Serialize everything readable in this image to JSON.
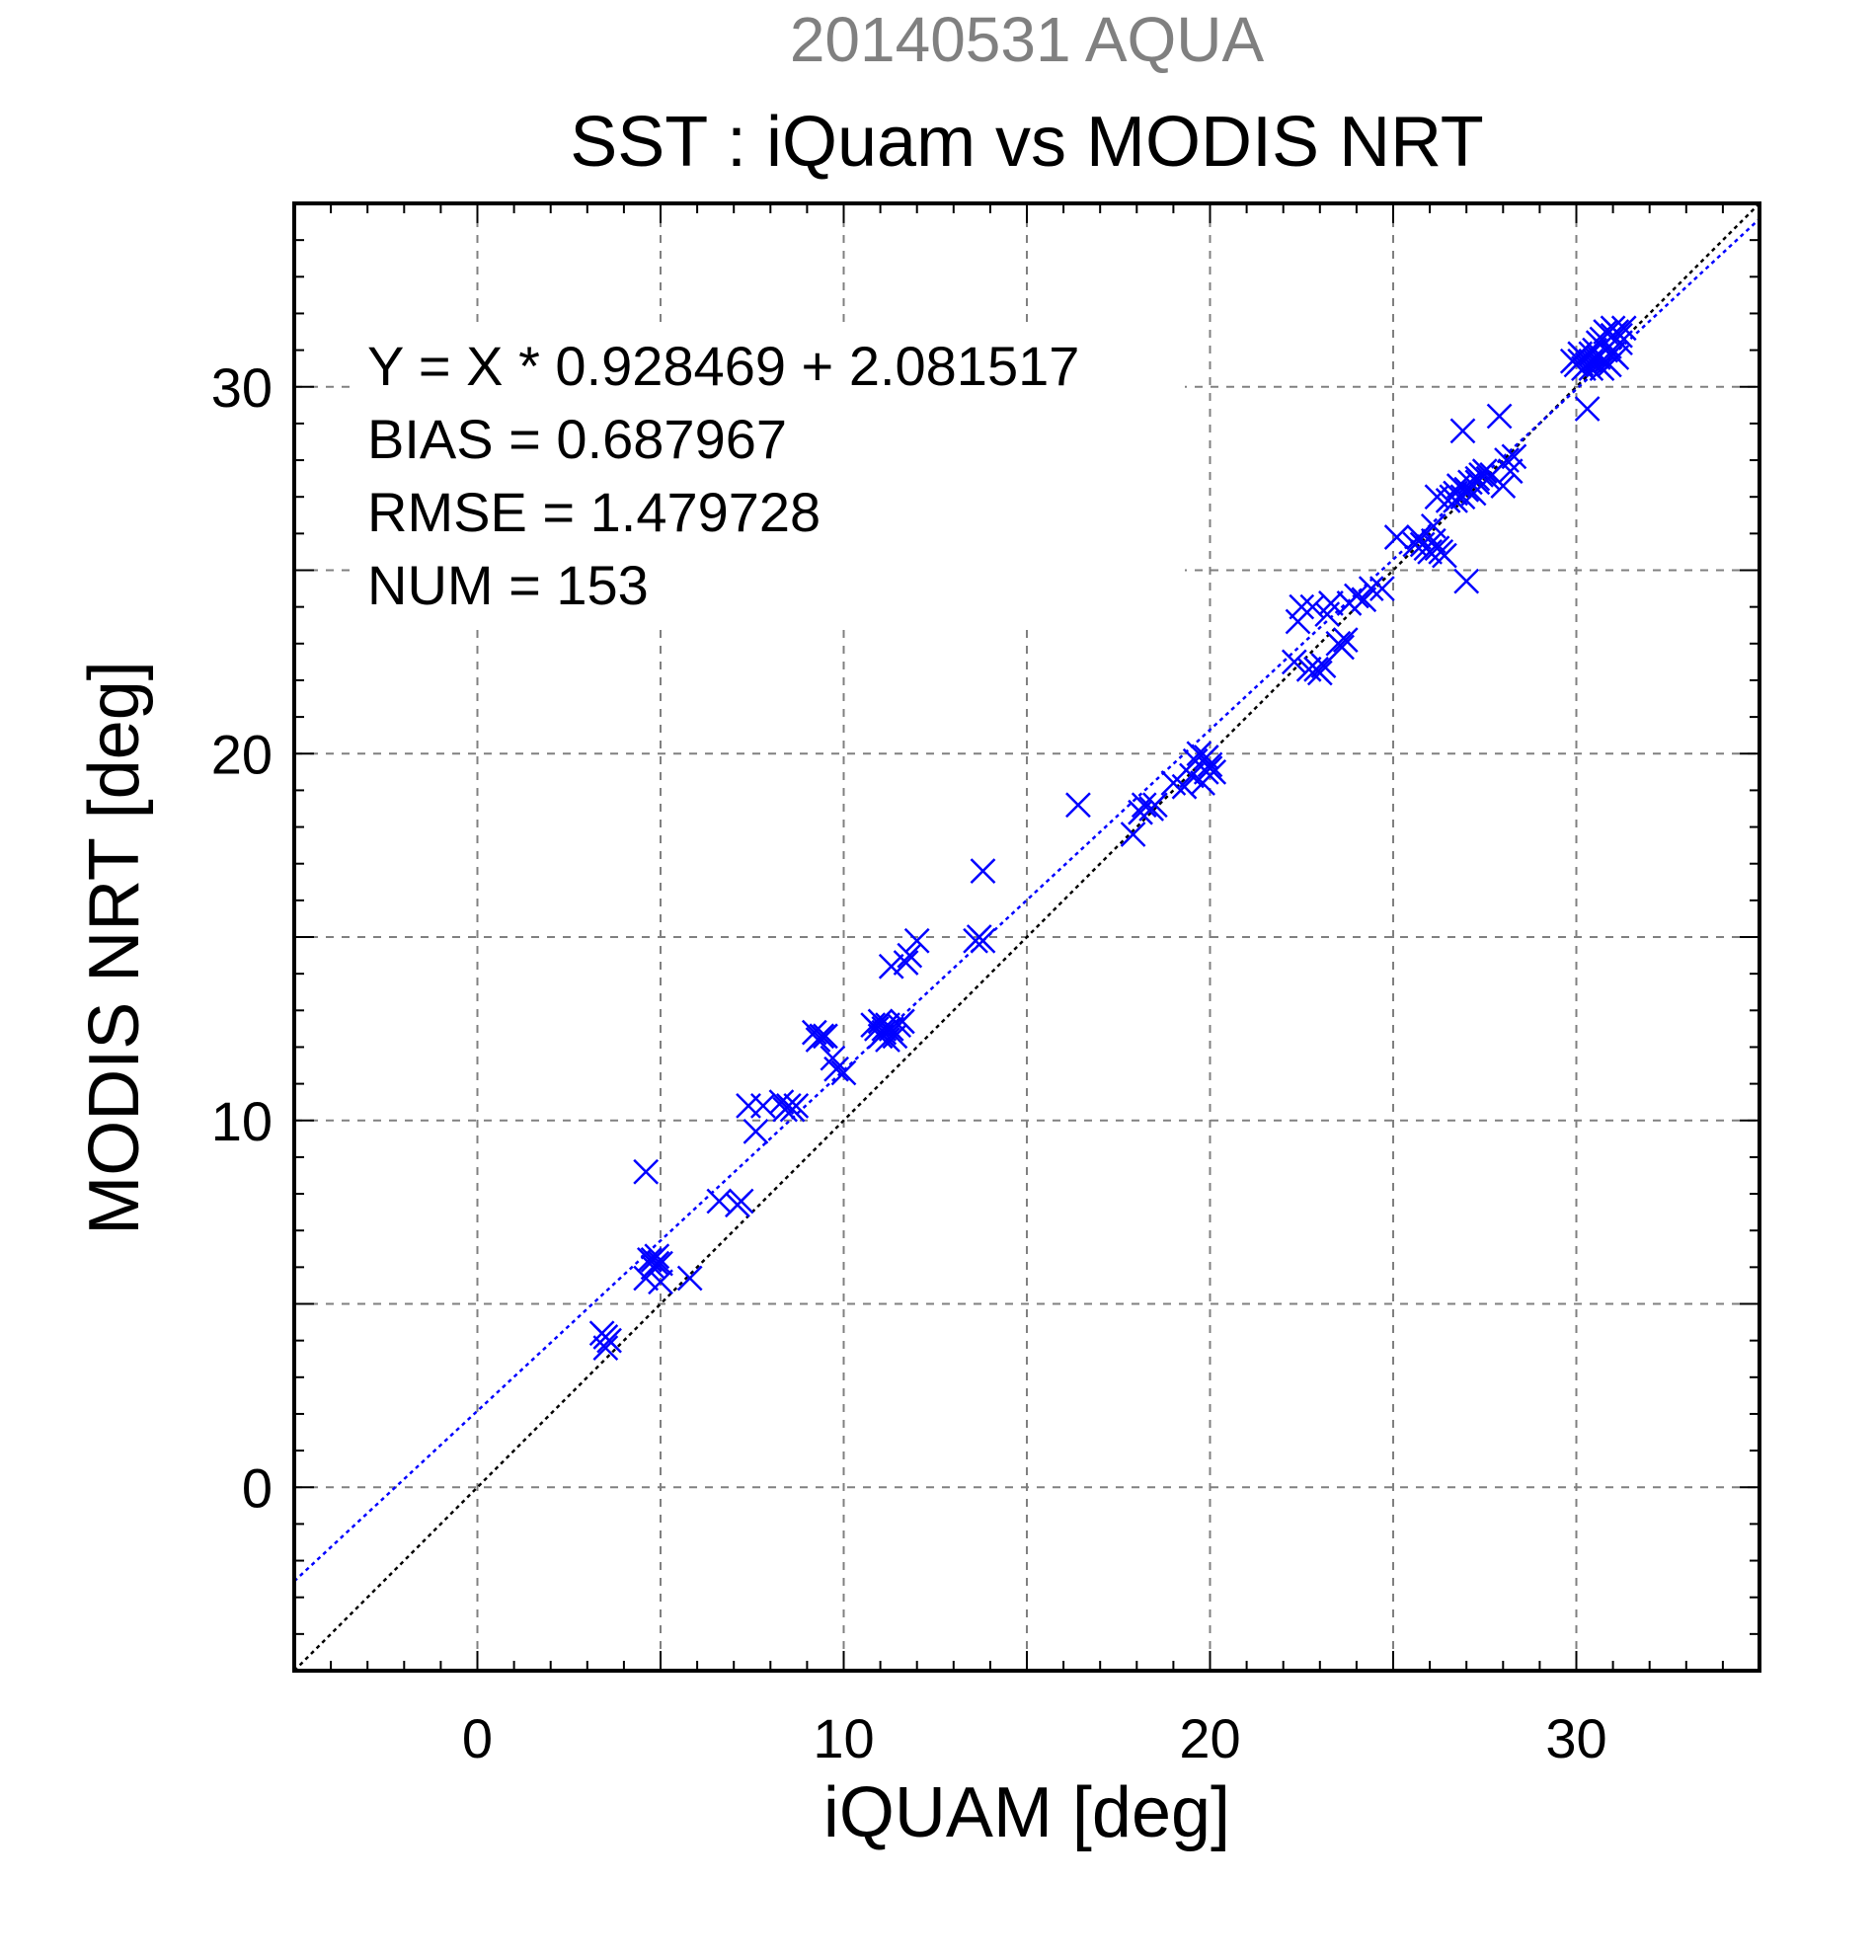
{
  "chart_data": {
    "type": "scatter",
    "title": "SST : iQuam vs MODIS NRT",
    "subtitle": "20140531 AQUA",
    "xlabel": "iQUAM [deg]",
    "ylabel": "MODIS NRT [deg]",
    "xlim": [
      -5,
      35
    ],
    "ylim": [
      -5,
      35
    ],
    "xticks": [
      0,
      10,
      20,
      30
    ],
    "yticks": [
      0,
      10,
      20,
      30
    ],
    "grid": true,
    "annotations": [
      "Y = X * 0.928469 + 2.081517",
      "BIAS = 0.687967",
      "RMSE = 1.479728",
      "NUM = 153"
    ],
    "fit_line": {
      "slope": 0.928469,
      "intercept": 2.081517
    },
    "colors": {
      "points": "#0000ff",
      "fit": "#0000ff",
      "identity": "#000000",
      "subtitle": "#808080",
      "grid": "#808080"
    },
    "series": [
      {
        "marker": "x",
        "points": [
          [
            3.4,
            4.2
          ],
          [
            3.5,
            4.1
          ],
          [
            3.5,
            3.8
          ],
          [
            3.6,
            4.0
          ],
          [
            4.6,
            8.6
          ],
          [
            4.6,
            5.7
          ],
          [
            4.7,
            6.2
          ],
          [
            4.8,
            6.0
          ],
          [
            4.9,
            6.3
          ],
          [
            4.9,
            6.1
          ],
          [
            5.0,
            5.6
          ],
          [
            5.0,
            6.1
          ],
          [
            5.8,
            5.7
          ],
          [
            6.6,
            7.8
          ],
          [
            7.1,
            7.7
          ],
          [
            7.2,
            7.8
          ],
          [
            7.4,
            10.4
          ],
          [
            7.6,
            9.7
          ],
          [
            7.8,
            10.4
          ],
          [
            8.3,
            10.5
          ],
          [
            8.4,
            10.3
          ],
          [
            8.5,
            10.4
          ],
          [
            8.6,
            10.3
          ],
          [
            9.2,
            12.4
          ],
          [
            9.3,
            12.2
          ],
          [
            9.4,
            12.3
          ],
          [
            9.7,
            11.7
          ],
          [
            9.8,
            11.4
          ],
          [
            10.0,
            11.3
          ],
          [
            10.8,
            12.6
          ],
          [
            10.9,
            12.5
          ],
          [
            11.0,
            12.3
          ],
          [
            11.0,
            12.7
          ],
          [
            11.1,
            12.4
          ],
          [
            11.2,
            12.6
          ],
          [
            11.3,
            12.5
          ],
          [
            11.3,
            14.2
          ],
          [
            11.4,
            12.3
          ],
          [
            11.5,
            12.6
          ],
          [
            11.6,
            12.7
          ],
          [
            11.7,
            14.3
          ],
          [
            11.8,
            14.5
          ],
          [
            12.0,
            14.9
          ],
          [
            13.6,
            14.9
          ],
          [
            13.7,
            15.0
          ],
          [
            13.8,
            14.9
          ],
          [
            13.8,
            16.8
          ],
          [
            16.4,
            18.6
          ],
          [
            17.9,
            17.8
          ],
          [
            18.1,
            18.4
          ],
          [
            18.2,
            18.6
          ],
          [
            18.4,
            18.5
          ],
          [
            18.5,
            18.6
          ],
          [
            19.0,
            19.2
          ],
          [
            19.3,
            19.1
          ],
          [
            19.5,
            19.4
          ],
          [
            19.6,
            19.8
          ],
          [
            19.7,
            20.0
          ],
          [
            19.8,
            19.2
          ],
          [
            19.9,
            19.5
          ],
          [
            19.9,
            19.9
          ],
          [
            20.0,
            19.6
          ],
          [
            20.0,
            19.7
          ],
          [
            20.1,
            19.5
          ],
          [
            22.3,
            22.5
          ],
          [
            22.4,
            23.6
          ],
          [
            22.5,
            24.0
          ],
          [
            22.7,
            22.3
          ],
          [
            22.8,
            24.0
          ],
          [
            22.9,
            22.3
          ],
          [
            23.0,
            22.2
          ],
          [
            23.1,
            22.4
          ],
          [
            23.2,
            23.8
          ],
          [
            23.3,
            24.1
          ],
          [
            23.5,
            23.0
          ],
          [
            23.6,
            22.9
          ],
          [
            23.7,
            23.1
          ],
          [
            23.8,
            24.1
          ],
          [
            24.0,
            24.3
          ],
          [
            24.2,
            24.2
          ],
          [
            24.4,
            24.5
          ],
          [
            24.7,
            24.5
          ],
          [
            25.1,
            25.9
          ],
          [
            25.6,
            25.7
          ],
          [
            25.7,
            25.9
          ],
          [
            25.8,
            25.7
          ],
          [
            25.9,
            25.6
          ],
          [
            26.0,
            25.5
          ],
          [
            26.1,
            26.2
          ],
          [
            26.2,
            25.6
          ],
          [
            26.2,
            27.0
          ],
          [
            26.3,
            25.5
          ],
          [
            26.4,
            25.4
          ],
          [
            26.5,
            26.9
          ],
          [
            26.6,
            27.0
          ],
          [
            26.7,
            27.1
          ],
          [
            26.8,
            27.3
          ],
          [
            26.9,
            27.0
          ],
          [
            26.9,
            28.8
          ],
          [
            27.0,
            24.7
          ],
          [
            27.0,
            27.2
          ],
          [
            27.1,
            27.4
          ],
          [
            27.2,
            27.1
          ],
          [
            27.3,
            27.5
          ],
          [
            27.4,
            27.6
          ],
          [
            27.5,
            27.7
          ],
          [
            27.6,
            27.5
          ],
          [
            27.7,
            27.6
          ],
          [
            27.9,
            29.2
          ],
          [
            28.0,
            27.3
          ],
          [
            28.1,
            28.0
          ],
          [
            28.2,
            27.7
          ],
          [
            28.3,
            28.1
          ],
          [
            29.9,
            30.7
          ],
          [
            30.0,
            30.6
          ],
          [
            30.1,
            30.7
          ],
          [
            30.2,
            30.5
          ],
          [
            30.3,
            30.6
          ],
          [
            30.3,
            29.4
          ],
          [
            30.4,
            30.9
          ],
          [
            30.4,
            30.5
          ],
          [
            30.5,
            30.7
          ],
          [
            30.5,
            31.0
          ],
          [
            30.6,
            30.6
          ],
          [
            30.6,
            30.8
          ],
          [
            30.7,
            30.5
          ],
          [
            30.7,
            31.3
          ],
          [
            30.8,
            30.7
          ],
          [
            30.8,
            31.5
          ],
          [
            30.9,
            30.6
          ],
          [
            30.9,
            31.1
          ],
          [
            31.0,
            31.4
          ],
          [
            31.0,
            30.9
          ],
          [
            31.1,
            31.5
          ],
          [
            31.2,
            31.4
          ],
          [
            31.2,
            31.2
          ],
          [
            31.3,
            31.6
          ],
          [
            30.1,
            30.9
          ],
          [
            30.2,
            30.8
          ],
          [
            30.4,
            30.7
          ],
          [
            30.6,
            31.2
          ],
          [
            30.8,
            31.0
          ],
          [
            31.0,
            31.6
          ],
          [
            31.1,
            30.8
          ],
          [
            27.0,
            27.2
          ],
          [
            27.3,
            27.4
          ],
          [
            26.7,
            26.9
          ],
          [
            26.1,
            25.8
          ],
          [
            11.1,
            12.5
          ],
          [
            11.2,
            12.2
          ],
          [
            9.5,
            12.3
          ],
          [
            8.7,
            10.4
          ],
          [
            4.8,
            6.2
          ]
        ]
      }
    ]
  }
}
